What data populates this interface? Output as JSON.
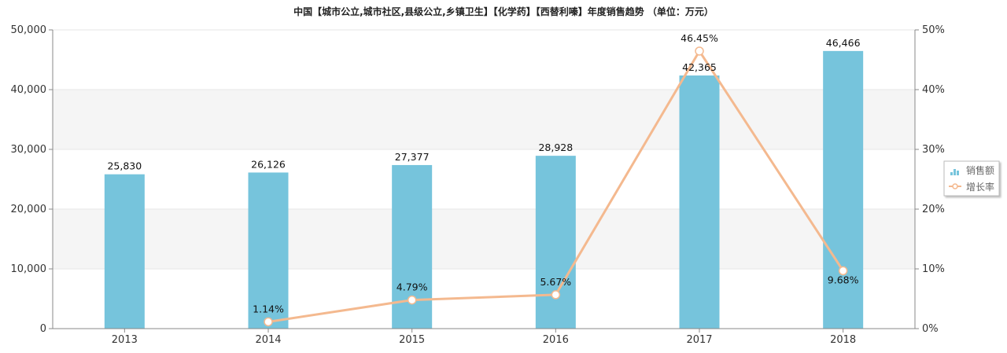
{
  "chart_data": {
    "type": "bar",
    "title": "中国【城市公立,城市社区,县级公立,乡镇卫生】【化学药】【西替利嗪】年度销售趋势 （单位：万元）",
    "categories": [
      "2013",
      "2014",
      "2015",
      "2016",
      "2017",
      "2018"
    ],
    "series": [
      {
        "name": "销售额",
        "type": "bar",
        "axis": "left",
        "color": "#76c4dc",
        "values": [
          25830,
          26126,
          27377,
          28928,
          42365,
          46466
        ],
        "labels": [
          "25,830",
          "26,126",
          "27,377",
          "28,928",
          "42,365",
          "46,466"
        ]
      },
      {
        "name": "增长率",
        "type": "line",
        "axis": "right",
        "color": "#f4b98f",
        "values": [
          null,
          1.14,
          4.79,
          5.67,
          46.45,
          9.68
        ],
        "labels": [
          "",
          "1.14%",
          "4.79%",
          "5.67%",
          "46.45%",
          "9.68%"
        ]
      }
    ],
    "y_left": {
      "ylim": [
        0,
        50000
      ],
      "ticks": [
        "0",
        "10,000",
        "20,000",
        "30,000",
        "40,000",
        "50,000"
      ]
    },
    "y_right": {
      "ylim": [
        0,
        50
      ],
      "ticks": [
        "0%",
        "10%",
        "20%",
        "30%",
        "40%",
        "50%"
      ]
    },
    "grid": true,
    "legend_position": "right"
  }
}
